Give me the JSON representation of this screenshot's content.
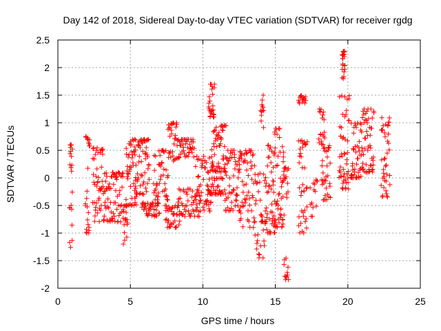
{
  "chart_data": {
    "type": "scatter",
    "title": "Day 142 of 2018, Sidereal Day-to-day VTEC variation (SDTVAR) for receiver rgdg",
    "xlabel": "GPS time / hours",
    "ylabel": "SDTVAR / TECUs",
    "xlim": [
      0,
      25
    ],
    "ylim": [
      -2,
      2.5
    ],
    "xticks": [
      0,
      5,
      10,
      15,
      20,
      25
    ],
    "yticks": [
      -2,
      -1.5,
      -1,
      -0.5,
      0,
      0.5,
      1,
      1.5,
      2,
      2.5
    ],
    "xtick_labels": [
      "0",
      "5",
      "10",
      "15",
      "20",
      "25"
    ],
    "ytick_labels": [
      "-2",
      "-1.5",
      "-1",
      "-0.5",
      "0",
      "0.5",
      "1",
      "1.5",
      "2",
      "2.5"
    ],
    "grid": true,
    "marker": "+",
    "color": "#ff0000",
    "segments": [
      {
        "x0": 0.8,
        "x1": 1.0,
        "y0": -1.3,
        "y1": 0.6,
        "n": 22
      },
      {
        "x0": 1.9,
        "x1": 2.2,
        "y0": -1.0,
        "y1": 0.75,
        "n": 26
      },
      {
        "x0": 2.4,
        "x1": 3.2,
        "y0": -0.8,
        "y1": 0.55,
        "n": 50
      },
      {
        "x0": 3.2,
        "x1": 4.5,
        "y0": -0.8,
        "y1": 0.1,
        "n": 70
      },
      {
        "x0": 4.5,
        "x1": 4.8,
        "y0": -1.2,
        "y1": -0.5,
        "n": 18
      },
      {
        "x0": 4.7,
        "x1": 5.4,
        "y0": -0.5,
        "y1": 0.7,
        "n": 48
      },
      {
        "x0": 5.3,
        "x1": 6.3,
        "y0": -0.3,
        "y1": 0.7,
        "n": 60
      },
      {
        "x0": 5.8,
        "x1": 7.0,
        "y0": -0.7,
        "y1": -0.45,
        "n": 40
      },
      {
        "x0": 6.6,
        "x1": 7.6,
        "y0": -0.4,
        "y1": 0.5,
        "n": 46
      },
      {
        "x0": 7.4,
        "x1": 8.4,
        "y0": -0.9,
        "y1": -0.5,
        "n": 40
      },
      {
        "x0": 7.6,
        "x1": 8.2,
        "y0": 0.3,
        "y1": 1.0,
        "n": 30
      },
      {
        "x0": 8.2,
        "x1": 9.4,
        "y0": 0.35,
        "y1": 0.7,
        "n": 44
      },
      {
        "x0": 8.3,
        "x1": 9.8,
        "y0": -0.7,
        "y1": -0.2,
        "n": 50
      },
      {
        "x0": 9.5,
        "x1": 10.6,
        "y0": -0.6,
        "y1": 0.4,
        "n": 50
      },
      {
        "x0": 10.4,
        "x1": 10.8,
        "y0": 1.1,
        "y1": 1.7,
        "n": 26
      },
      {
        "x0": 10.6,
        "x1": 11.6,
        "y0": 0.1,
        "y1": 0.95,
        "n": 60
      },
      {
        "x0": 10.3,
        "x1": 11.4,
        "y0": -0.3,
        "y1": 0.0,
        "n": 40
      },
      {
        "x0": 11.5,
        "x1": 12.6,
        "y0": -0.6,
        "y1": 0.5,
        "n": 60
      },
      {
        "x0": 12.5,
        "x1": 13.6,
        "y0": -0.9,
        "y1": 0.5,
        "n": 60
      },
      {
        "x0": 13.6,
        "x1": 14.3,
        "y0": -1.45,
        "y1": 0.1,
        "n": 34
      },
      {
        "x0": 14.0,
        "x1": 14.2,
        "y0": 0.9,
        "y1": 1.65,
        "n": 12
      },
      {
        "x0": 14.3,
        "x1": 15.0,
        "y0": -1.0,
        "y1": 0.6,
        "n": 50
      },
      {
        "x0": 14.9,
        "x1": 15.6,
        "y0": -0.9,
        "y1": 0.9,
        "n": 50
      },
      {
        "x0": 15.6,
        "x1": 15.9,
        "y0": -1.85,
        "y1": -1.45,
        "n": 12
      },
      {
        "x0": 15.5,
        "x1": 15.9,
        "y0": -0.4,
        "y1": 0.2,
        "n": 16
      },
      {
        "x0": 16.6,
        "x1": 17.1,
        "y0": 1.35,
        "y1": 1.5,
        "n": 16
      },
      {
        "x0": 16.6,
        "x1": 17.2,
        "y0": -1.0,
        "y1": 0.7,
        "n": 40
      },
      {
        "x0": 17.4,
        "x1": 17.9,
        "y0": -0.7,
        "y1": 0.0,
        "n": 14
      },
      {
        "x0": 18.0,
        "x1": 18.4,
        "y0": 0.6,
        "y1": 1.25,
        "n": 20
      },
      {
        "x0": 18.2,
        "x1": 18.8,
        "y0": -0.4,
        "y1": 0.6,
        "n": 34
      },
      {
        "x0": 19.6,
        "x1": 19.8,
        "y0": 1.8,
        "y1": 2.3,
        "n": 22
      },
      {
        "x0": 19.4,
        "x1": 20.1,
        "y0": -0.2,
        "y1": 1.5,
        "n": 50
      },
      {
        "x0": 20.2,
        "x1": 21.0,
        "y0": 0.0,
        "y1": 1.0,
        "n": 50
      },
      {
        "x0": 21.0,
        "x1": 21.8,
        "y0": 0.1,
        "y1": 1.25,
        "n": 50
      },
      {
        "x0": 22.3,
        "x1": 22.9,
        "y0": -0.35,
        "y1": 1.1,
        "n": 40
      }
    ]
  }
}
